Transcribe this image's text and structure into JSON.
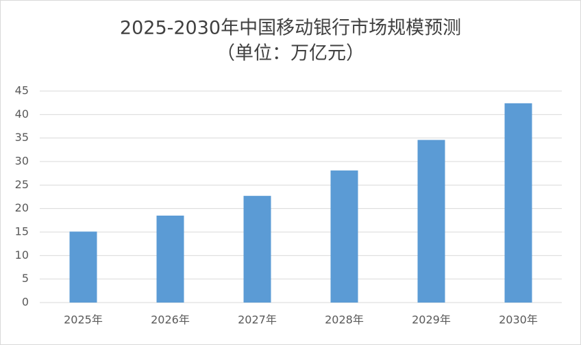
{
  "chart_data": {
    "type": "bar",
    "title": "2025-2030年中国移动银行市场规模预测",
    "subtitle": "（单位：万亿元）",
    "categories": [
      "2025年",
      "2026年",
      "2027年",
      "2028年",
      "2029年",
      "2030年"
    ],
    "values": [
      15.1,
      18.5,
      22.7,
      28.1,
      34.6,
      42.4
    ],
    "color": "#5b9bd5",
    "ylim": [
      0,
      45
    ],
    "yticks": [
      0,
      5,
      10,
      15,
      20,
      25,
      30,
      35,
      40,
      45
    ],
    "grid": true
  }
}
